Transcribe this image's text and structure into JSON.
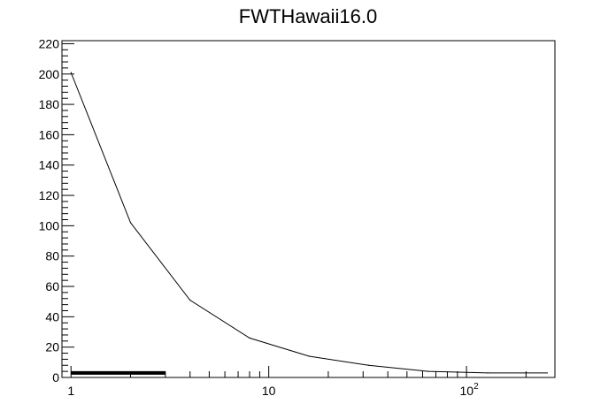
{
  "chart_data": {
    "type": "line",
    "title": "FWTHawaii16.0",
    "xlabel": "",
    "ylabel": "",
    "x_scale": "log",
    "xlim": [
      0.9,
      280
    ],
    "ylim": [
      0,
      222
    ],
    "x_tick_labels": [
      {
        "value": 1,
        "label": "1"
      },
      {
        "value": 10,
        "label": "10"
      },
      {
        "value": 100,
        "label": "10",
        "sup": "2"
      }
    ],
    "y_ticks": [
      0,
      20,
      40,
      60,
      80,
      100,
      120,
      140,
      160,
      180,
      200,
      220
    ],
    "grid": false,
    "series": [
      {
        "x": [
          1,
          2,
          4,
          8,
          16,
          32,
          64,
          128,
          256
        ],
        "y": [
          201,
          102,
          51,
          26,
          14,
          8,
          4,
          3,
          3
        ],
        "color": "#000000"
      }
    ],
    "baseline_band": {
      "x_start": 1,
      "x_end": 3,
      "y": 3,
      "color": "#000000"
    }
  }
}
